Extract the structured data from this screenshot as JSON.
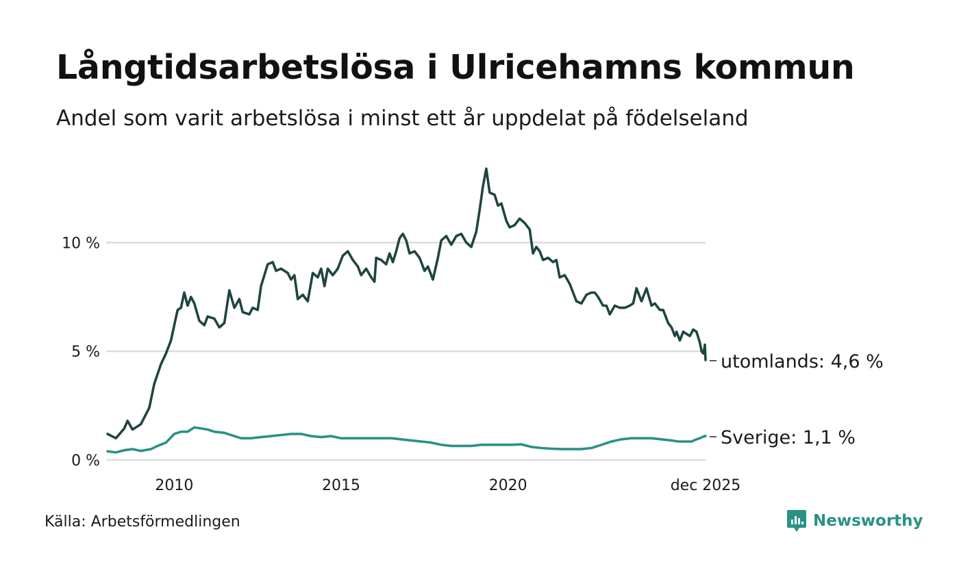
{
  "header": {
    "title": "Långtidsarbetslösa i Ulricehamns kommun",
    "subtitle": "Andel som varit arbetslösa i minst ett år uppdelat på födelseland"
  },
  "footer": {
    "source": "Källa: Arbetsförmedlingen",
    "brand": "Newsworthy"
  },
  "chart_data": {
    "type": "line",
    "title": "Långtidsarbetslösa i Ulricehamns kommun",
    "subtitle": "Andel som varit arbetslösa i minst ett år uppdelat på födelseland",
    "xlabel": "",
    "ylabel": "",
    "xlim": [
      2008.0,
      2025.92
    ],
    "ylim": [
      0,
      13.6
    ],
    "x_ticks": [
      {
        "value": 2010,
        "label": "2010"
      },
      {
        "value": 2015,
        "label": "2015"
      },
      {
        "value": 2020,
        "label": "2020"
      },
      {
        "value": 2025.92,
        "label": "dec 2025"
      }
    ],
    "y_ticks": [
      {
        "value": 0,
        "label": "0 %"
      },
      {
        "value": 5,
        "label": "5 %"
      },
      {
        "value": 10,
        "label": "10 %"
      }
    ],
    "grid": "horizontal",
    "colors": {
      "utomlands": "#1f4540",
      "sverige": "#2a9185",
      "grid": "#dcdcdc"
    },
    "series": [
      {
        "name": "utomlands",
        "end_label": "utomlands: 4,6 %",
        "points": [
          [
            2008.0,
            1.2
          ],
          [
            2008.25,
            1.0
          ],
          [
            2008.5,
            1.45
          ],
          [
            2008.6,
            1.8
          ],
          [
            2008.75,
            1.4
          ],
          [
            2009.0,
            1.65
          ],
          [
            2009.25,
            2.4
          ],
          [
            2009.4,
            3.5
          ],
          [
            2009.6,
            4.4
          ],
          [
            2009.75,
            4.9
          ],
          [
            2009.9,
            5.5
          ],
          [
            2010.0,
            6.2
          ],
          [
            2010.1,
            6.9
          ],
          [
            2010.2,
            7.0
          ],
          [
            2010.3,
            7.7
          ],
          [
            2010.4,
            7.1
          ],
          [
            2010.5,
            7.5
          ],
          [
            2010.6,
            7.2
          ],
          [
            2010.75,
            6.4
          ],
          [
            2010.9,
            6.2
          ],
          [
            2011.0,
            6.6
          ],
          [
            2011.2,
            6.5
          ],
          [
            2011.35,
            6.1
          ],
          [
            2011.5,
            6.3
          ],
          [
            2011.65,
            7.8
          ],
          [
            2011.8,
            7.0
          ],
          [
            2011.95,
            7.4
          ],
          [
            2012.05,
            6.8
          ],
          [
            2012.25,
            6.7
          ],
          [
            2012.35,
            7.0
          ],
          [
            2012.5,
            6.9
          ],
          [
            2012.6,
            8.0
          ],
          [
            2012.8,
            9.0
          ],
          [
            2012.95,
            9.1
          ],
          [
            2013.05,
            8.7
          ],
          [
            2013.2,
            8.8
          ],
          [
            2013.4,
            8.6
          ],
          [
            2013.5,
            8.3
          ],
          [
            2013.6,
            8.5
          ],
          [
            2013.7,
            7.4
          ],
          [
            2013.85,
            7.6
          ],
          [
            2014.0,
            7.3
          ],
          [
            2014.15,
            8.6
          ],
          [
            2014.3,
            8.4
          ],
          [
            2014.4,
            8.8
          ],
          [
            2014.5,
            8.0
          ],
          [
            2014.6,
            8.8
          ],
          [
            2014.75,
            8.5
          ],
          [
            2014.9,
            8.8
          ],
          [
            2015.05,
            9.4
          ],
          [
            2015.2,
            9.6
          ],
          [
            2015.35,
            9.2
          ],
          [
            2015.5,
            8.9
          ],
          [
            2015.6,
            8.5
          ],
          [
            2015.75,
            8.8
          ],
          [
            2015.9,
            8.4
          ],
          [
            2016.0,
            8.2
          ],
          [
            2016.05,
            9.3
          ],
          [
            2016.2,
            9.2
          ],
          [
            2016.35,
            9.0
          ],
          [
            2016.45,
            9.5
          ],
          [
            2016.55,
            9.1
          ],
          [
            2016.65,
            9.6
          ],
          [
            2016.75,
            10.2
          ],
          [
            2016.85,
            10.4
          ],
          [
            2016.95,
            10.1
          ],
          [
            2017.05,
            9.5
          ],
          [
            2017.2,
            9.6
          ],
          [
            2017.35,
            9.3
          ],
          [
            2017.5,
            8.7
          ],
          [
            2017.6,
            8.9
          ],
          [
            2017.75,
            8.3
          ],
          [
            2017.9,
            9.3
          ],
          [
            2018.0,
            10.1
          ],
          [
            2018.15,
            10.3
          ],
          [
            2018.3,
            9.9
          ],
          [
            2018.45,
            10.3
          ],
          [
            2018.6,
            10.4
          ],
          [
            2018.75,
            10.0
          ],
          [
            2018.9,
            9.8
          ],
          [
            2019.05,
            10.5
          ],
          [
            2019.15,
            11.5
          ],
          [
            2019.25,
            12.6
          ],
          [
            2019.35,
            13.4
          ],
          [
            2019.45,
            12.3
          ],
          [
            2019.6,
            12.2
          ],
          [
            2019.7,
            11.7
          ],
          [
            2019.8,
            11.8
          ],
          [
            2019.95,
            11.0
          ],
          [
            2020.05,
            10.7
          ],
          [
            2020.2,
            10.8
          ],
          [
            2020.35,
            11.1
          ],
          [
            2020.5,
            10.9
          ],
          [
            2020.65,
            10.6
          ],
          [
            2020.75,
            9.5
          ],
          [
            2020.85,
            9.8
          ],
          [
            2020.95,
            9.6
          ],
          [
            2021.05,
            9.2
          ],
          [
            2021.2,
            9.3
          ],
          [
            2021.35,
            9.1
          ],
          [
            2021.45,
            9.2
          ],
          [
            2021.55,
            8.4
          ],
          [
            2021.7,
            8.5
          ],
          [
            2021.85,
            8.1
          ],
          [
            2021.95,
            7.7
          ],
          [
            2022.05,
            7.3
          ],
          [
            2022.2,
            7.2
          ],
          [
            2022.35,
            7.6
          ],
          [
            2022.5,
            7.7
          ],
          [
            2022.6,
            7.7
          ],
          [
            2022.7,
            7.5
          ],
          [
            2022.85,
            7.1
          ],
          [
            2022.95,
            7.1
          ],
          [
            2023.05,
            6.7
          ],
          [
            2023.2,
            7.1
          ],
          [
            2023.35,
            7.0
          ],
          [
            2023.5,
            7.0
          ],
          [
            2023.65,
            7.1
          ],
          [
            2023.75,
            7.2
          ],
          [
            2023.85,
            7.9
          ],
          [
            2024.0,
            7.3
          ],
          [
            2024.15,
            7.9
          ],
          [
            2024.3,
            7.1
          ],
          [
            2024.4,
            7.2
          ],
          [
            2024.55,
            6.9
          ],
          [
            2024.65,
            6.9
          ],
          [
            2024.8,
            6.3
          ],
          [
            2024.9,
            6.1
          ],
          [
            2025.0,
            5.7
          ],
          [
            2025.05,
            5.9
          ],
          [
            2025.15,
            5.5
          ],
          [
            2025.25,
            5.9
          ],
          [
            2025.35,
            5.8
          ],
          [
            2025.45,
            5.7
          ],
          [
            2025.55,
            6.0
          ],
          [
            2025.65,
            5.9
          ],
          [
            2025.75,
            5.4
          ],
          [
            2025.8,
            5.0
          ],
          [
            2025.85,
            4.9
          ],
          [
            2025.88,
            5.1
          ],
          [
            2025.9,
            5.3
          ],
          [
            2025.92,
            4.6
          ]
        ]
      },
      {
        "name": "Sverige",
        "end_label": "Sverige: 1,1 %",
        "points": [
          [
            2008.0,
            0.4
          ],
          [
            2008.25,
            0.35
          ],
          [
            2008.5,
            0.45
          ],
          [
            2008.75,
            0.5
          ],
          [
            2009.0,
            0.42
          ],
          [
            2009.3,
            0.5
          ],
          [
            2009.5,
            0.65
          ],
          [
            2009.75,
            0.8
          ],
          [
            2010.0,
            1.2
          ],
          [
            2010.2,
            1.3
          ],
          [
            2010.4,
            1.3
          ],
          [
            2010.6,
            1.5
          ],
          [
            2010.8,
            1.45
          ],
          [
            2011.0,
            1.4
          ],
          [
            2011.2,
            1.3
          ],
          [
            2011.5,
            1.25
          ],
          [
            2011.8,
            1.1
          ],
          [
            2012.0,
            1.0
          ],
          [
            2012.3,
            1.0
          ],
          [
            2012.6,
            1.05
          ],
          [
            2012.9,
            1.1
          ],
          [
            2013.2,
            1.15
          ],
          [
            2013.5,
            1.2
          ],
          [
            2013.8,
            1.2
          ],
          [
            2014.1,
            1.1
          ],
          [
            2014.4,
            1.05
          ],
          [
            2014.7,
            1.1
          ],
          [
            2015.0,
            1.0
          ],
          [
            2015.3,
            1.0
          ],
          [
            2015.6,
            1.0
          ],
          [
            2015.9,
            1.0
          ],
          [
            2016.2,
            1.0
          ],
          [
            2016.5,
            1.0
          ],
          [
            2016.8,
            0.95
          ],
          [
            2017.1,
            0.9
          ],
          [
            2017.4,
            0.85
          ],
          [
            2017.7,
            0.8
          ],
          [
            2018.0,
            0.7
          ],
          [
            2018.3,
            0.65
          ],
          [
            2018.6,
            0.65
          ],
          [
            2018.9,
            0.65
          ],
          [
            2019.2,
            0.7
          ],
          [
            2019.5,
            0.7
          ],
          [
            2019.8,
            0.7
          ],
          [
            2020.1,
            0.7
          ],
          [
            2020.4,
            0.72
          ],
          [
            2020.7,
            0.6
          ],
          [
            2021.0,
            0.55
          ],
          [
            2021.3,
            0.52
          ],
          [
            2021.6,
            0.5
          ],
          [
            2021.9,
            0.5
          ],
          [
            2022.2,
            0.5
          ],
          [
            2022.5,
            0.55
          ],
          [
            2022.8,
            0.7
          ],
          [
            2023.1,
            0.85
          ],
          [
            2023.4,
            0.95
          ],
          [
            2023.7,
            1.0
          ],
          [
            2024.0,
            1.0
          ],
          [
            2024.3,
            1.0
          ],
          [
            2024.6,
            0.95
          ],
          [
            2024.9,
            0.9
          ],
          [
            2025.1,
            0.85
          ],
          [
            2025.3,
            0.85
          ],
          [
            2025.5,
            0.85
          ],
          [
            2025.65,
            0.95
          ],
          [
            2025.75,
            1.0
          ],
          [
            2025.82,
            1.05
          ],
          [
            2025.88,
            1.1
          ],
          [
            2025.92,
            1.1
          ]
        ]
      }
    ]
  }
}
